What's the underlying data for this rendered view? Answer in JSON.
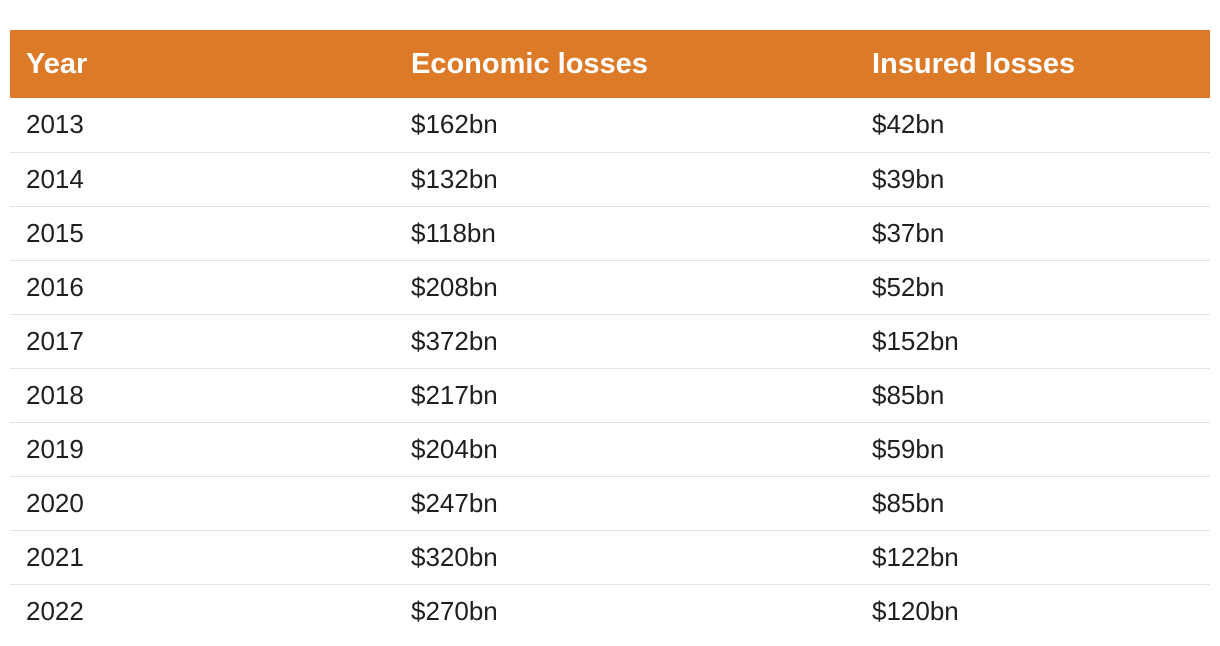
{
  "chart_data": {
    "type": "table",
    "columns": [
      "Year",
      "Economic losses",
      "Insured losses"
    ],
    "rows": [
      [
        "2013",
        "$162bn",
        "$42bn"
      ],
      [
        "2014",
        "$132bn",
        "$39bn"
      ],
      [
        "2015",
        "$118bn",
        "$37bn"
      ],
      [
        "2016",
        "$208bn",
        "$52bn"
      ],
      [
        "2017",
        "$372bn",
        "$152bn"
      ],
      [
        "2018",
        "$217bn",
        "$85bn"
      ],
      [
        "2019",
        "$204bn",
        "$59bn"
      ],
      [
        "2020",
        "$247bn",
        "$85bn"
      ],
      [
        "2021",
        "$320bn",
        "$122bn"
      ],
      [
        "2022",
        "$270bn",
        "$120bn"
      ]
    ],
    "series": [
      {
        "name": "Economic losses",
        "unit": "$bn",
        "values": [
          162,
          132,
          118,
          208,
          372,
          217,
          204,
          247,
          320,
          270
        ]
      },
      {
        "name": "Insured losses",
        "unit": "$bn",
        "values": [
          42,
          39,
          37,
          52,
          152,
          85,
          59,
          85,
          122,
          120
        ]
      }
    ],
    "categories": [
      "2013",
      "2014",
      "2015",
      "2016",
      "2017",
      "2018",
      "2019",
      "2020",
      "2021",
      "2022"
    ]
  },
  "colors": {
    "header_background": "#dd7a28",
    "header_text": "#ffffff",
    "body_text": "#1f1f1f",
    "row_divider": "#e3e3e3"
  }
}
